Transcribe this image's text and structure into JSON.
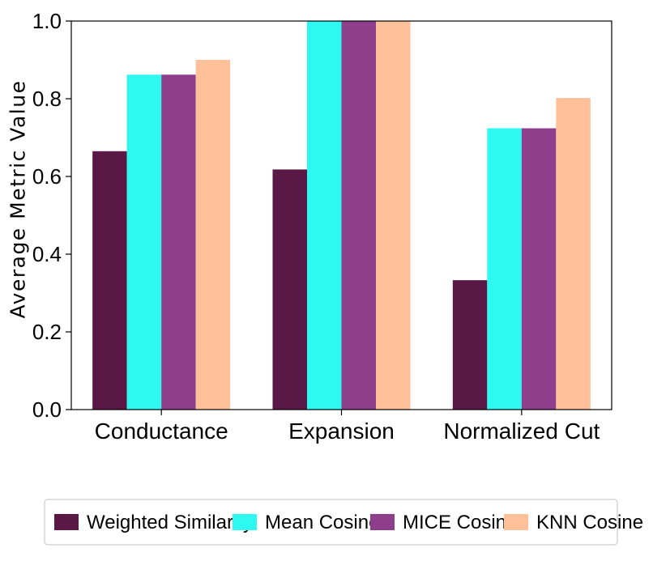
{
  "chart_data": {
    "type": "bar",
    "title": "",
    "xlabel": "",
    "ylabel": "Average Metric Value",
    "ylim": [
      0.0,
      1.0
    ],
    "yticks": [
      "0.0",
      "0.2",
      "0.4",
      "0.6",
      "0.8",
      "1.0"
    ],
    "categories": [
      "Conductance",
      "Expansion",
      "Normalized Cut"
    ],
    "legend_position": "bottom",
    "series": [
      {
        "name": "Weighted Similarity",
        "color": "#5a1846",
        "values": [
          0.665,
          0.618,
          0.333
        ]
      },
      {
        "name": "Mean Cosine",
        "color": "#2ef9f0",
        "values": [
          0.862,
          1.0,
          0.724
        ]
      },
      {
        "name": "MICE Cosine",
        "color": "#8e3f8c",
        "values": [
          0.862,
          1.0,
          0.724
        ]
      },
      {
        "name": "KNN Cosine",
        "color": "#ffc09a",
        "values": [
          0.9,
          1.0,
          0.802
        ]
      }
    ]
  }
}
